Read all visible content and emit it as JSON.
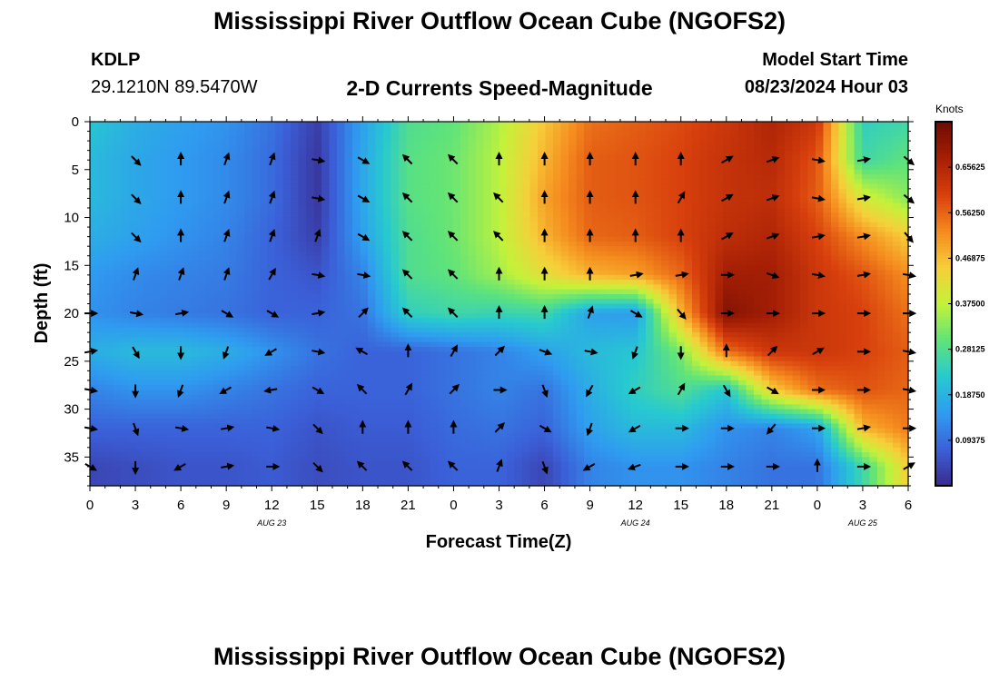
{
  "header": {
    "title": "Mississippi River Outflow Ocean Cube (NGOFS2)",
    "station_id": "KDLP",
    "station_location": "29.1210N  89.5470W",
    "subtitle": "2-D Currents Speed-Magnitude",
    "model_start_label": "Model Start Time",
    "model_start_value": "08/23/2024 Hour 03"
  },
  "footer": {
    "title": "Mississippi River Outflow Ocean Cube (NGOFS2)"
  },
  "chart_data": {
    "type": "heatmap",
    "title": "2-D Currents Speed-Magnitude",
    "xlabel": "Forecast Time(Z)",
    "ylabel": "Depth (ft)",
    "x_unit": "hours since 08/23 00Z",
    "xlim": [
      0,
      54
    ],
    "ylim": [
      0,
      38
    ],
    "x_ticks": [
      0,
      3,
      6,
      9,
      12,
      15,
      18,
      21,
      24,
      27,
      30,
      33,
      36,
      39,
      42,
      45,
      48,
      51,
      54
    ],
    "x_tick_labels": [
      "0",
      "3",
      "6",
      "9",
      "12",
      "15",
      "18",
      "21",
      "0",
      "3",
      "6",
      "9",
      "12",
      "15",
      "18",
      "21",
      "0",
      "3",
      "6"
    ],
    "date_labels": [
      {
        "x": 12,
        "text": "AUG 23"
      },
      {
        "x": 36,
        "text": "AUG 24"
      },
      {
        "x": 51,
        "text": "AUG 25"
      }
    ],
    "y_ticks": [
      0,
      5,
      10,
      15,
      20,
      25,
      30,
      35
    ],
    "y_tick_labels": [
      "0",
      "5",
      "10",
      "15",
      "20",
      "25",
      "30",
      "35"
    ],
    "colorbar": {
      "label": "Knots",
      "min": 0.0,
      "max": 0.75,
      "tick_values": [
        0.09375,
        0.1875,
        0.28125,
        0.375,
        0.46875,
        0.5625,
        0.65625
      ],
      "tick_labels": [
        "0.09375",
        "0.18750",
        "0.28125",
        "0.37500",
        "0.46875",
        "0.56250",
        "0.65625"
      ],
      "colors": [
        "#3a2a8c",
        "#3b5fd8",
        "#2f9bf0",
        "#27c9d0",
        "#5fe37a",
        "#c3f23a",
        "#f6cf3a",
        "#f58a1e",
        "#d8400d",
        "#a61f05",
        "#6e0c02"
      ]
    },
    "hours": [
      0,
      3,
      6,
      9,
      12,
      15,
      18,
      21,
      24,
      27,
      30,
      33,
      36,
      39,
      42,
      45,
      48,
      51,
      54
    ],
    "depths": [
      0,
      4,
      8,
      12,
      16,
      20,
      24,
      28,
      32,
      36
    ],
    "speed_knots": [
      [
        0.22,
        0.18,
        0.16,
        0.14,
        0.1,
        0.03,
        0.16,
        0.28,
        0.3,
        0.36,
        0.46,
        0.55,
        0.57,
        0.59,
        0.62,
        0.66,
        0.62,
        0.24,
        0.26
      ],
      [
        0.2,
        0.17,
        0.15,
        0.13,
        0.09,
        0.02,
        0.17,
        0.29,
        0.31,
        0.37,
        0.48,
        0.57,
        0.58,
        0.6,
        0.63,
        0.65,
        0.58,
        0.26,
        0.3
      ],
      [
        0.2,
        0.17,
        0.15,
        0.13,
        0.09,
        0.02,
        0.17,
        0.29,
        0.31,
        0.37,
        0.5,
        0.57,
        0.58,
        0.6,
        0.63,
        0.64,
        0.57,
        0.4,
        0.33
      ],
      [
        0.18,
        0.16,
        0.14,
        0.12,
        0.08,
        0.03,
        0.16,
        0.28,
        0.31,
        0.37,
        0.48,
        0.56,
        0.57,
        0.6,
        0.64,
        0.66,
        0.6,
        0.52,
        0.45
      ],
      [
        0.15,
        0.13,
        0.12,
        0.11,
        0.08,
        0.06,
        0.12,
        0.28,
        0.3,
        0.35,
        0.42,
        0.48,
        0.5,
        0.56,
        0.68,
        0.68,
        0.62,
        0.58,
        0.52
      ],
      [
        0.14,
        0.12,
        0.11,
        0.1,
        0.08,
        0.08,
        0.1,
        0.24,
        0.26,
        0.25,
        0.26,
        0.16,
        0.15,
        0.48,
        0.72,
        0.68,
        0.62,
        0.6,
        0.55
      ],
      [
        0.18,
        0.2,
        0.2,
        0.18,
        0.14,
        0.1,
        0.08,
        0.08,
        0.1,
        0.12,
        0.16,
        0.2,
        0.22,
        0.32,
        0.55,
        0.62,
        0.62,
        0.6,
        0.57
      ],
      [
        0.12,
        0.14,
        0.14,
        0.12,
        0.1,
        0.08,
        0.08,
        0.08,
        0.1,
        0.12,
        0.1,
        0.18,
        0.24,
        0.28,
        0.22,
        0.45,
        0.55,
        0.58,
        0.56
      ],
      [
        0.08,
        0.08,
        0.08,
        0.08,
        0.08,
        0.06,
        0.07,
        0.07,
        0.09,
        0.1,
        0.08,
        0.16,
        0.2,
        0.2,
        0.14,
        0.12,
        0.16,
        0.48,
        0.54
      ],
      [
        0.04,
        0.05,
        0.06,
        0.06,
        0.07,
        0.05,
        0.06,
        0.06,
        0.08,
        0.08,
        0.04,
        0.12,
        0.14,
        0.14,
        0.12,
        0.1,
        0.1,
        0.26,
        0.45
      ]
    ],
    "arrow_hours": [
      0,
      3,
      6,
      9,
      12,
      15,
      18,
      21,
      24,
      27,
      30,
      33,
      36,
      39,
      42,
      45,
      48,
      51,
      54
    ],
    "arrow_depths": [
      0,
      4,
      8,
      12,
      16,
      20,
      24,
      28,
      32,
      36
    ],
    "arrow_dir_deg": [
      [
        null,
        null,
        null,
        null,
        null,
        null,
        null,
        null,
        null,
        null,
        null,
        null,
        null,
        null,
        null,
        null,
        null,
        null,
        null
      ],
      [
        null,
        135,
        0,
        20,
        20,
        100,
        120,
        315,
        315,
        0,
        0,
        0,
        0,
        0,
        60,
        70,
        100,
        80,
        130
      ],
      [
        null,
        135,
        0,
        20,
        20,
        100,
        120,
        315,
        315,
        315,
        0,
        0,
        0,
        30,
        60,
        70,
        100,
        80,
        130
      ],
      [
        null,
        135,
        0,
        20,
        20,
        20,
        120,
        315,
        315,
        315,
        0,
        0,
        0,
        0,
        60,
        70,
        80,
        80,
        140
      ],
      [
        null,
        20,
        20,
        20,
        30,
        100,
        100,
        315,
        315,
        0,
        0,
        0,
        80,
        80,
        90,
        110,
        100,
        80,
        100
      ],
      [
        90,
        100,
        80,
        120,
        120,
        80,
        45,
        315,
        315,
        0,
        0,
        20,
        120,
        140,
        90,
        90,
        90,
        90,
        90
      ],
      [
        80,
        150,
        180,
        200,
        240,
        100,
        300,
        0,
        30,
        45,
        110,
        100,
        200,
        180,
        0,
        45,
        60,
        90,
        100
      ],
      [
        100,
        180,
        200,
        240,
        260,
        120,
        315,
        30,
        45,
        90,
        160,
        210,
        240,
        30,
        150,
        120,
        90,
        90,
        100
      ],
      [
        100,
        160,
        100,
        80,
        100,
        135,
        0,
        0,
        0,
        45,
        120,
        200,
        240,
        90,
        90,
        220,
        90,
        80,
        90
      ],
      [
        120,
        180,
        240,
        80,
        90,
        135,
        315,
        315,
        315,
        20,
        160,
        240,
        250,
        90,
        90,
        90,
        0,
        90,
        60
      ]
    ]
  }
}
